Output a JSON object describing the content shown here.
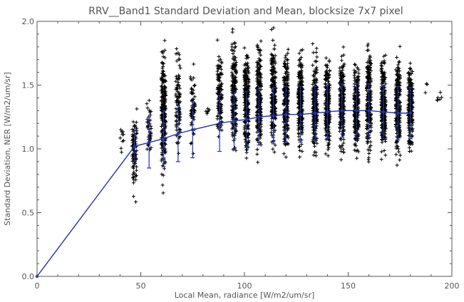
{
  "chart_data": {
    "type": "scatter",
    "title": "RRV__Band1 Standard Deviation and Mean, blocksize 7x7 pixel",
    "xlabel": "Local Mean, radiance [W/m2/um/sr]",
    "ylabel": "Standard Deviation, NER [W/m2/um/sr]",
    "xlim": [
      0,
      200
    ],
    "ylim": [
      0,
      2.0
    ],
    "xticks": [
      "0",
      "50",
      "100",
      "150",
      "200"
    ],
    "yticks": [
      "0.0",
      "0.5",
      "1.0",
      "1.5",
      "2.0"
    ],
    "grid": false,
    "colors": {
      "points": "#000000",
      "mean": "#2233aa",
      "frame": "#555555"
    },
    "clusters": [
      {
        "x": 41,
        "ymin": 0.8,
        "ymax": 1.3,
        "n": 10
      },
      {
        "x": 47,
        "ymin": 0.53,
        "ymax": 1.42,
        "n": 90
      },
      {
        "x": 54,
        "ymin": 0.8,
        "ymax": 1.45,
        "n": 40
      },
      {
        "x": 61,
        "ymin": 0.63,
        "ymax": 1.97,
        "n": 230
      },
      {
        "x": 68,
        "ymin": 0.84,
        "ymax": 1.9,
        "n": 90
      },
      {
        "x": 75,
        "ymin": 0.8,
        "ymax": 1.75,
        "n": 60
      },
      {
        "x": 82,
        "ymin": 1.2,
        "ymax": 1.4,
        "n": 6
      },
      {
        "x": 88,
        "ymin": 0.95,
        "ymax": 1.9,
        "n": 130
      },
      {
        "x": 95,
        "ymin": 0.9,
        "ymax": 1.95,
        "n": 190
      },
      {
        "x": 101,
        "ymin": 0.8,
        "ymax": 1.95,
        "n": 230
      },
      {
        "x": 107,
        "ymin": 0.85,
        "ymax": 1.95,
        "n": 230
      },
      {
        "x": 114,
        "ymin": 0.88,
        "ymax": 1.95,
        "n": 230
      },
      {
        "x": 120,
        "ymin": 0.85,
        "ymax": 1.9,
        "n": 230
      },
      {
        "x": 127,
        "ymin": 0.85,
        "ymax": 1.9,
        "n": 230
      },
      {
        "x": 134,
        "ymin": 0.85,
        "ymax": 1.85,
        "n": 230
      },
      {
        "x": 140,
        "ymin": 0.85,
        "ymax": 1.85,
        "n": 230
      },
      {
        "x": 147,
        "ymin": 0.85,
        "ymax": 1.85,
        "n": 230
      },
      {
        "x": 154,
        "ymin": 0.85,
        "ymax": 1.8,
        "n": 230
      },
      {
        "x": 160,
        "ymin": 0.8,
        "ymax": 1.95,
        "n": 230
      },
      {
        "x": 167,
        "ymin": 0.85,
        "ymax": 1.85,
        "n": 230
      },
      {
        "x": 174,
        "ymin": 0.85,
        "ymax": 1.85,
        "n": 230
      },
      {
        "x": 180,
        "ymin": 0.85,
        "ymax": 1.8,
        "n": 200
      },
      {
        "x": 187,
        "ymin": 1.4,
        "ymax": 1.6,
        "n": 3
      },
      {
        "x": 194,
        "ymin": 1.3,
        "ymax": 1.48,
        "n": 6
      }
    ],
    "mean_series": {
      "x": [
        0,
        47,
        54,
        61,
        68,
        75,
        88,
        95,
        101,
        107,
        114,
        120,
        127,
        134,
        140,
        147,
        154,
        160,
        167,
        174,
        180
      ],
      "y": [
        0.0,
        1.02,
        1.05,
        1.08,
        1.12,
        1.15,
        1.2,
        1.22,
        1.23,
        1.25,
        1.26,
        1.27,
        1.27,
        1.28,
        1.29,
        1.3,
        1.3,
        1.3,
        1.29,
        1.28,
        1.28
      ],
      "err": [
        0.0,
        0.12,
        0.2,
        0.22,
        0.22,
        0.22,
        0.22,
        0.22,
        0.22,
        0.22,
        0.22,
        0.22,
        0.22,
        0.21,
        0.21,
        0.21,
        0.21,
        0.21,
        0.21,
        0.21,
        0.2
      ]
    }
  }
}
